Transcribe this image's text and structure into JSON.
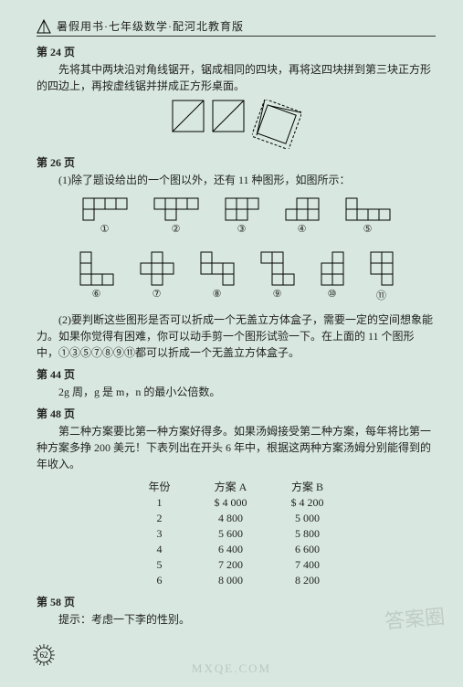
{
  "header": {
    "text": "暑假用书·七年级数学·配河北教育版"
  },
  "page24": {
    "title": "第 24 页",
    "text": "先将其中两块沿对角线锯开，锯成相同的四块，再将这四块拼到第三块正方形的四边上，再按虚线锯并拼成正方形桌面。",
    "squares": {
      "size": 36,
      "stroke": "#000000"
    }
  },
  "page26": {
    "title": "第 26 页",
    "text1": "(1)除了题设给出的一个图以外，还有 11 种图形，如图所示：",
    "text2": "(2)要判断这些图形是否可以折成一个无盖立方体盒子，需要一定的空间想象能力。如果你觉得有困难，你可以动手剪一个图形试验一下。在上面的 11 个图形中，①③⑤⑦⑧⑨⑪都可以折成一个无盖立方体盒子。",
    "pentominos": {
      "cell": 12,
      "stroke": "#000000",
      "shapes": [
        {
          "label": "①",
          "cells": [
            [
              0,
              0
            ],
            [
              1,
              0
            ],
            [
              2,
              0
            ],
            [
              3,
              0
            ],
            [
              0,
              1
            ]
          ]
        },
        {
          "label": "②",
          "cells": [
            [
              0,
              0
            ],
            [
              1,
              0
            ],
            [
              2,
              0
            ],
            [
              3,
              0
            ],
            [
              1,
              1
            ]
          ]
        },
        {
          "label": "③",
          "cells": [
            [
              0,
              0
            ],
            [
              1,
              0
            ],
            [
              2,
              0
            ],
            [
              0,
              1
            ],
            [
              1,
              1
            ]
          ]
        },
        {
          "label": "④",
          "cells": [
            [
              1,
              0
            ],
            [
              2,
              0
            ],
            [
              0,
              1
            ],
            [
              1,
              1
            ],
            [
              2,
              1
            ]
          ]
        },
        {
          "label": "⑤",
          "cells": [
            [
              0,
              0
            ],
            [
              0,
              1
            ],
            [
              1,
              1
            ],
            [
              2,
              1
            ],
            [
              3,
              1
            ]
          ]
        },
        {
          "label": "⑥",
          "cells": [
            [
              0,
              0
            ],
            [
              0,
              1
            ],
            [
              0,
              2
            ],
            [
              1,
              2
            ],
            [
              2,
              2
            ]
          ]
        },
        {
          "label": "⑦",
          "cells": [
            [
              1,
              0
            ],
            [
              0,
              1
            ],
            [
              1,
              1
            ],
            [
              2,
              1
            ],
            [
              1,
              2
            ]
          ]
        },
        {
          "label": "⑧",
          "cells": [
            [
              0,
              0
            ],
            [
              0,
              1
            ],
            [
              1,
              1
            ],
            [
              2,
              1
            ],
            [
              2,
              2
            ]
          ]
        },
        {
          "label": "⑨",
          "cells": [
            [
              0,
              0
            ],
            [
              1,
              0
            ],
            [
              1,
              1
            ],
            [
              1,
              2
            ],
            [
              2,
              2
            ]
          ]
        },
        {
          "label": "⑩",
          "cells": [
            [
              1,
              0
            ],
            [
              0,
              1
            ],
            [
              1,
              1
            ],
            [
              0,
              2
            ],
            [
              1,
              2
            ]
          ]
        },
        {
          "label": "⑪",
          "cells": [
            [
              0,
              0
            ],
            [
              1,
              0
            ],
            [
              0,
              1
            ],
            [
              1,
              1
            ],
            [
              1,
              2
            ]
          ]
        }
      ]
    }
  },
  "page44": {
    "title": "第 44 页",
    "text": "2g 周，g 是 m，n 的最小公倍数。"
  },
  "page48": {
    "title": "第 48 页",
    "text": "第二种方案要比第一种方案好得多。如果汤姆接受第二种方案，每年将比第一种方案多挣 200 美元！下表列出在开头 6 年中，根据这两种方案汤姆分别能得到的年收入。",
    "table": {
      "headers": [
        "年份",
        "方案 A",
        "方案 B"
      ],
      "rows": [
        [
          "1",
          "$ 4 000",
          "$ 4 200"
        ],
        [
          "2",
          "4 800",
          "5 000"
        ],
        [
          "3",
          "5 600",
          "5 800"
        ],
        [
          "4",
          "6 400",
          "6 600"
        ],
        [
          "5",
          "7 200",
          "7 400"
        ],
        [
          "6",
          "8 000",
          "8 200"
        ]
      ]
    }
  },
  "page58": {
    "title": "第 58 页",
    "text": "提示：考虑一下李的性别。"
  },
  "pageNumber": "62",
  "watermark1": "答案圈",
  "watermark2": "MXQE.COM"
}
